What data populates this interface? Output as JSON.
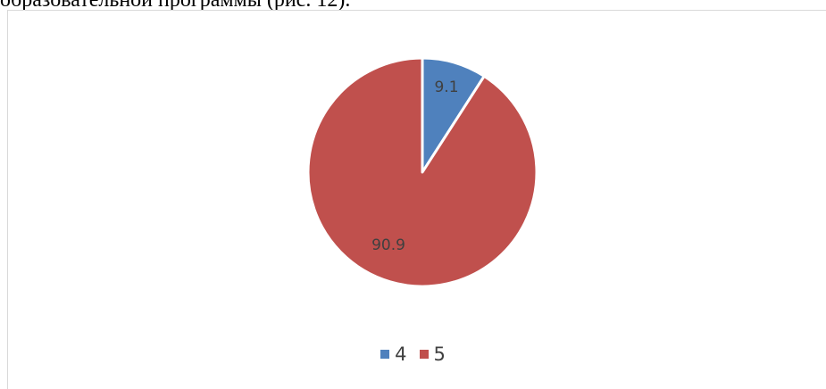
{
  "document": {
    "text_above": "образовательной программы (рис. 12)."
  },
  "chart_data": {
    "type": "pie",
    "categories": [
      "4",
      "5"
    ],
    "values": [
      9.1,
      90.9
    ],
    "colors": [
      "#4f81bd",
      "#c0504d"
    ],
    "data_labels": [
      "9.1",
      "90.9"
    ],
    "start_angle": "12 o'clock, clockwise",
    "legend_placement": "bottom",
    "title": ""
  }
}
